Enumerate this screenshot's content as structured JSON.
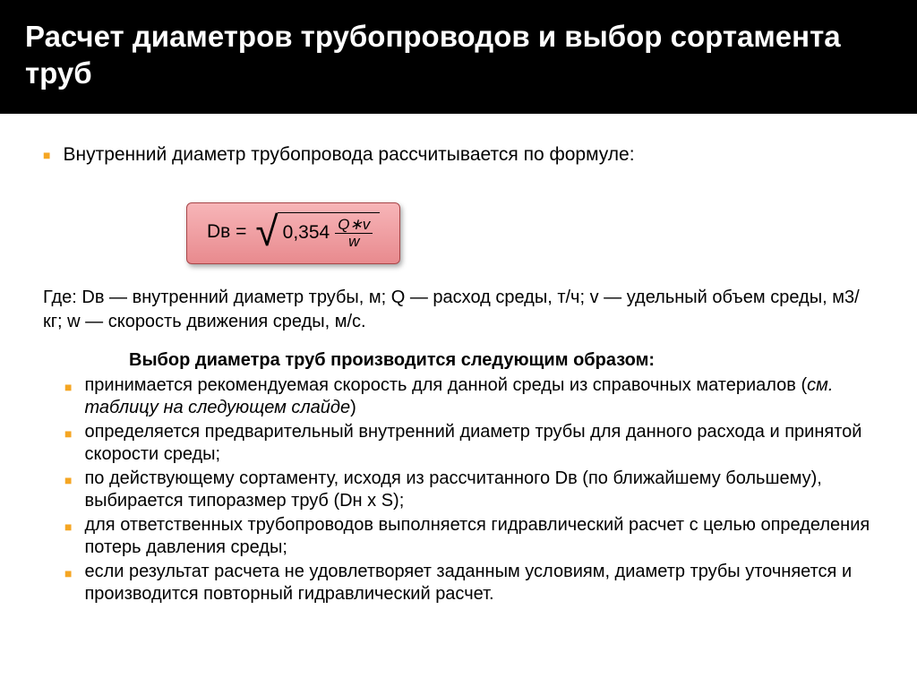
{
  "header": {
    "title": "Расчет диаметров трубопроводов и выбор сортамента труб"
  },
  "intro": "Внутренний диаметр трубопровода рассчитывается по формуле:",
  "formula": {
    "lhs": "Dв =",
    "const": "0,354",
    "numer": "Q∗v",
    "denom": "w"
  },
  "where_prefix": "Где:  ",
  "where_body": "Dв — внутренний диаметр трубы, м; Q — расход среды, т/ч; v — удельный объем среды, м3/кг; w — скорость движения среды, м/с.",
  "subtitle": "Выбор диаметра труб производится следующим образом:",
  "steps": [
    {
      "pre": "принимается рекомендуемая скорость для данной среды из справочных материалов (",
      "italic": "см. таблицу на следующем слайде",
      "post": ")"
    },
    {
      "pre": "определяется предварительный внутренний диаметр трубы для данного расхода и принятой скорости среды;",
      "italic": "",
      "post": ""
    },
    {
      "pre": "по действующему сортаменту, исходя из рассчитанного Dв (по ближайшему большему), выбирается типоразмер труб (Dн x S);",
      "italic": "",
      "post": ""
    },
    {
      "pre": "для ответственных трубопроводов выполняется гидравлический расчет с целью определения потерь давления среды;",
      "italic": "",
      "post": ""
    },
    {
      "pre": " если результат расчета не удовлетворяет заданным условиям, диаметр трубы уточняется и производится повторный гидравлический расчет.",
      "italic": "",
      "post": ""
    }
  ]
}
